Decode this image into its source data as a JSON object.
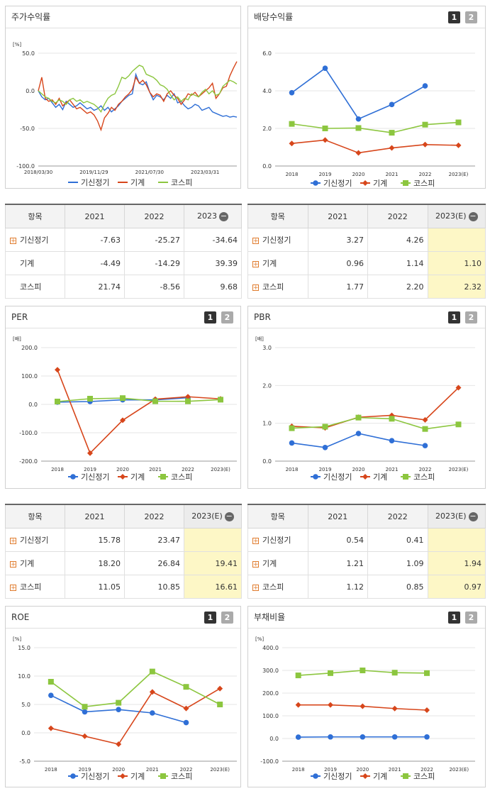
{
  "colors": {
    "s1": "#2f6fd6",
    "s2": "#d7461b",
    "s3": "#8cc63f"
  },
  "series_names": [
    "기신정기",
    "기계",
    "코스피"
  ],
  "buttons": {
    "b1": "1",
    "b2": "2"
  },
  "panels": {
    "stock": {
      "title": "주가수익률"
    },
    "div": {
      "title": "배당수익률"
    },
    "per": {
      "title": "PER"
    },
    "pbr": {
      "title": "PBR"
    },
    "roe": {
      "title": "ROE"
    },
    "debt": {
      "title": "부채비율"
    }
  },
  "tables": {
    "stock": {
      "head": [
        "항목",
        "2021",
        "2022",
        "2023"
      ],
      "rows": [
        {
          "name": "기신정기",
          "plus": true,
          "vals": [
            "-7.63",
            "-25.27",
            "-34.64"
          ]
        },
        {
          "name": "기계",
          "plus": false,
          "vals": [
            "-4.49",
            "-14.29",
            "39.39"
          ]
        },
        {
          "name": "코스피",
          "plus": false,
          "vals": [
            "21.74",
            "-8.56",
            "9.68"
          ]
        }
      ]
    },
    "div": {
      "head": [
        "항목",
        "2021",
        "2022",
        "2023(E)"
      ],
      "rows": [
        {
          "name": "기신정기",
          "plus": true,
          "vals": [
            "3.27",
            "4.26",
            ""
          ]
        },
        {
          "name": "기계",
          "plus": true,
          "vals": [
            "0.96",
            "1.14",
            "1.10"
          ]
        },
        {
          "name": "코스피",
          "plus": true,
          "vals": [
            "1.77",
            "2.20",
            "2.32"
          ]
        }
      ]
    },
    "per": {
      "head": [
        "항목",
        "2021",
        "2022",
        "2023(E)"
      ],
      "rows": [
        {
          "name": "기신정기",
          "plus": true,
          "vals": [
            "15.78",
            "23.47",
            ""
          ]
        },
        {
          "name": "기계",
          "plus": true,
          "vals": [
            "18.20",
            "26.84",
            "19.41"
          ]
        },
        {
          "name": "코스피",
          "plus": true,
          "vals": [
            "11.05",
            "10.85",
            "16.61"
          ]
        }
      ]
    },
    "pbr": {
      "head": [
        "항목",
        "2021",
        "2022",
        "2023(E)"
      ],
      "rows": [
        {
          "name": "기신정기",
          "plus": true,
          "vals": [
            "0.54",
            "0.41",
            ""
          ]
        },
        {
          "name": "기계",
          "plus": true,
          "vals": [
            "1.21",
            "1.09",
            "1.94"
          ]
        },
        {
          "name": "코스피",
          "plus": true,
          "vals": [
            "1.12",
            "0.85",
            "0.97"
          ]
        }
      ]
    }
  },
  "chart_data": [
    {
      "id": "stock",
      "type": "line",
      "unit": "[%]",
      "ylim": [
        -100,
        50
      ],
      "yticks": [
        -100,
        -50,
        0,
        50
      ],
      "ytick_labels": [
        "-100.0",
        "-50.0",
        "0.0",
        "50.0"
      ],
      "x_tick_labels": [
        "2018/03/30",
        "2019/11/29",
        "2021/07/30",
        "2023/03/31"
      ],
      "x_tick_pos": [
        0,
        0.28,
        0.56,
        0.84
      ],
      "series": [
        {
          "name": "기신정기",
          "values": [
            0,
            -8,
            -12,
            -10,
            -16,
            -22,
            -18,
            -25,
            -14,
            -18,
            -22,
            -20,
            -16,
            -20,
            -24,
            -22,
            -26,
            -24,
            -20,
            -26,
            -22,
            -28,
            -24,
            -20,
            -14,
            -10,
            -6,
            -4,
            22,
            10,
            8,
            12,
            -2,
            -12,
            -6,
            -8,
            -12,
            -6,
            -10,
            -4,
            -16,
            -14,
            -20,
            -24,
            -22,
            -18,
            -20,
            -26,
            -24,
            -22,
            -28,
            -30,
            -32,
            -34,
            -33,
            -35,
            -34,
            -35
          ]
        },
        {
          "name": "기계",
          "values": [
            0,
            18,
            -10,
            -14,
            -12,
            -18,
            -10,
            -20,
            -16,
            -12,
            -18,
            -24,
            -22,
            -26,
            -30,
            -28,
            -32,
            -40,
            -52,
            -36,
            -30,
            -22,
            -26,
            -18,
            -14,
            -8,
            -4,
            2,
            18,
            10,
            14,
            8,
            -2,
            -8,
            -4,
            -6,
            -14,
            -4,
            0,
            -6,
            -10,
            -18,
            -12,
            -4,
            -6,
            -2,
            -8,
            -4,
            0,
            4,
            10,
            -10,
            -4,
            4,
            6,
            20,
            30,
            39
          ]
        },
        {
          "name": "코스피",
          "values": [
            0,
            -4,
            -8,
            -10,
            -14,
            -16,
            -12,
            -14,
            -18,
            -12,
            -10,
            -14,
            -12,
            -16,
            -14,
            -16,
            -18,
            -22,
            -28,
            -18,
            -10,
            -6,
            -4,
            6,
            18,
            16,
            20,
            26,
            30,
            34,
            32,
            22,
            20,
            18,
            14,
            8,
            6,
            2,
            -6,
            -12,
            -8,
            -14,
            -10,
            -12,
            -4,
            -6,
            -8,
            -2,
            2,
            -4,
            0,
            -6,
            -4,
            6,
            10,
            14,
            12,
            9
          ]
        }
      ]
    },
    {
      "id": "div",
      "type": "line",
      "unit": "",
      "ylim": [
        0,
        6
      ],
      "yticks": [
        0,
        2,
        4,
        6
      ],
      "ytick_labels": [
        "0.0",
        "2.0",
        "4.0",
        "6.0"
      ],
      "categories": [
        "2018",
        "2019",
        "2020",
        "2021",
        "2022",
        "2023(E)"
      ],
      "series": [
        {
          "name": "기신정기",
          "values": [
            3.9,
            5.2,
            2.5,
            3.27,
            4.26,
            null
          ]
        },
        {
          "name": "기계",
          "values": [
            1.2,
            1.38,
            0.7,
            0.96,
            1.14,
            1.1
          ]
        },
        {
          "name": "코스피",
          "values": [
            2.24,
            2.0,
            2.02,
            1.77,
            2.2,
            2.32
          ]
        }
      ]
    },
    {
      "id": "per",
      "type": "line",
      "unit": "[배]",
      "ylim": [
        -200,
        200
      ],
      "yticks": [
        -200,
        -100,
        0,
        100,
        200
      ],
      "ytick_labels": [
        "-200.0",
        "-100.0",
        "0.0",
        "100.0",
        "200.0"
      ],
      "categories": [
        "2018",
        "2019",
        "2020",
        "2021",
        "2022",
        "2023(E)"
      ],
      "series": [
        {
          "name": "기신정기",
          "values": [
            8,
            10,
            16,
            15.78,
            23.47,
            null
          ]
        },
        {
          "name": "기계",
          "values": [
            122,
            -172,
            -56,
            18.2,
            26.84,
            19.41
          ]
        },
        {
          "name": "코스피",
          "values": [
            10,
            20,
            22,
            11.05,
            10.85,
            16.61
          ]
        }
      ]
    },
    {
      "id": "pbr",
      "type": "line",
      "unit": "[배]",
      "ylim": [
        0,
        3
      ],
      "yticks": [
        0,
        1,
        2,
        3
      ],
      "ytick_labels": [
        "0.0",
        "1.0",
        "2.0",
        "3.0"
      ],
      "categories": [
        "2018",
        "2019",
        "2020",
        "2021",
        "2022",
        "2023(E)"
      ],
      "series": [
        {
          "name": "기신정기",
          "values": [
            0.48,
            0.36,
            0.73,
            0.54,
            0.41,
            null
          ]
        },
        {
          "name": "기계",
          "values": [
            0.92,
            0.88,
            1.16,
            1.21,
            1.09,
            1.94
          ]
        },
        {
          "name": "코스피",
          "values": [
            0.87,
            0.91,
            1.15,
            1.12,
            0.85,
            0.97
          ]
        }
      ]
    },
    {
      "id": "roe",
      "type": "line",
      "unit": "[%]",
      "ylim": [
        -5,
        15
      ],
      "yticks": [
        -5,
        0,
        5,
        10,
        15
      ],
      "ytick_labels": [
        "-5.0",
        "0.0",
        "5.0",
        "10.0",
        "15.0"
      ],
      "categories": [
        "2018",
        "2019",
        "2020",
        "2021",
        "2022",
        "2023(E)"
      ],
      "series": [
        {
          "name": "기신정기",
          "values": [
            6.6,
            3.7,
            4.1,
            3.5,
            1.8,
            null
          ]
        },
        {
          "name": "기계",
          "values": [
            0.8,
            -0.6,
            -2.0,
            7.2,
            4.3,
            7.8
          ]
        },
        {
          "name": "코스피",
          "values": [
            9.0,
            4.6,
            5.3,
            10.8,
            8.1,
            5.0
          ]
        }
      ]
    },
    {
      "id": "debt",
      "type": "line",
      "unit": "[%]",
      "ylim": [
        -100,
        400
      ],
      "yticks": [
        -100,
        0,
        100,
        200,
        300,
        400
      ],
      "ytick_labels": [
        "-100.0",
        "0.0",
        "100.0",
        "200.0",
        "300.0",
        "400.0"
      ],
      "categories": [
        "2018",
        "2019",
        "2020",
        "2021",
        "2022",
        "2023(E)"
      ],
      "series": [
        {
          "name": "기신정기",
          "values": [
            6,
            7,
            7,
            7,
            7,
            null
          ]
        },
        {
          "name": "기계",
          "values": [
            148,
            148,
            142,
            132,
            125,
            null
          ]
        },
        {
          "name": "코스피",
          "values": [
            278,
            288,
            300,
            290,
            288,
            null
          ]
        }
      ]
    }
  ]
}
